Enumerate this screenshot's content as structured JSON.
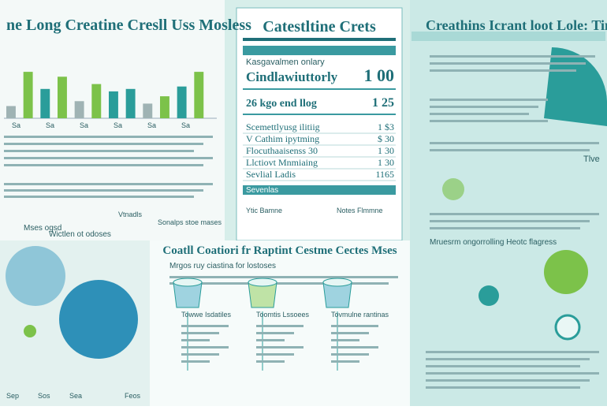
{
  "left": {
    "title": "ne Long Creatine Cresll Uss Mosless",
    "bars": {
      "values": [
        25,
        95,
        60,
        85,
        35,
        70,
        55,
        60,
        30,
        45,
        65,
        95
      ],
      "colors": [
        "#9fb3b4",
        "#7cc24a",
        "#2a9d9a",
        "#7cc24a",
        "#9fb3b4",
        "#7cc24a",
        "#2a9d9a",
        "#2a9d9a",
        "#9fb3b4",
        "#7cc24a",
        "#2a9d9a",
        "#7cc24a"
      ],
      "labels": [
        "Sa",
        "Sa",
        "Sa",
        "Sa",
        "Sa",
        "Sa"
      ]
    },
    "side_labels": [
      "Vtnadls",
      "Sonalps stoe mases"
    ],
    "note": "Mses ogsd",
    "caption": "Wictlen ot odoses",
    "bottom_labels": [
      "Sep",
      "Sos",
      "Sea",
      "Feos"
    ]
  },
  "facts": {
    "title": "Catestltine Crets",
    "sub": "Kasgavalmen onlary",
    "rows": [
      {
        "label": "Cindlawiuttorly",
        "value": "1 00"
      },
      {
        "label": "26 kgo end llog",
        "value": "1 25"
      }
    ],
    "items": [
      {
        "label": "Scemettlyusg ilitiig",
        "value": "1 $3"
      },
      {
        "label": "V Cathim ipytming",
        "value": "$ 30"
      },
      {
        "label": "Flocuthaaisenss   30",
        "value": "1 30"
      },
      {
        "label": "Llctiovt Mnmiaing",
        "value": "1 30"
      },
      {
        "label": "Sevlial Ladis",
        "value": "1165"
      }
    ],
    "section": "Sevenlas",
    "foot": [
      "Ytic Bamne",
      "Notes Flmmne"
    ]
  },
  "middle": {
    "title": "Coatll Coatiori fr Raptint Cestme Cectes Mses",
    "sub": "Mrgos ruy ciastina for lostoses",
    "cups": [
      {
        "label": "Towwe Isdatiles"
      },
      {
        "label": "Toomtis Lssoees"
      },
      {
        "label": "Tovmulne rantinas"
      }
    ]
  },
  "right": {
    "title": "Creathins Icrant loot Lole: Time",
    "side": "Tlve",
    "heading": "Mruesrm ongorrolling Heotc flagress"
  }
}
